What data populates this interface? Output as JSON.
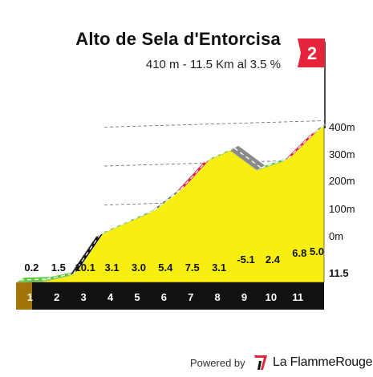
{
  "title": "Alto de Sela d'Entorcisa",
  "subtitle": "410 m - 11.5 Km al 3.5 %",
  "category_flag": "2",
  "footer": {
    "powered_by": "Powered by",
    "brand": "La FlammeRouge"
  },
  "colors": {
    "fill": "#f7ef10",
    "base": "#111111",
    "base_side": "#a3740a",
    "grade_colors": {
      "easy": "#5dc83c",
      "hard": "#111111",
      "medium": "#1d5b8a",
      "steep": "#e5243b",
      "flat": "#8a8a8a"
    },
    "flag": "#e5243b"
  },
  "chart_data": {
    "type": "area",
    "title": "Alto de Sela d'Entorcisa",
    "subtitle": "410 m - 11.5 Km al 3.5 %",
    "x_unit": "km",
    "y_unit": "m",
    "xlim": [
      0,
      11.5
    ],
    "ylim": [
      0,
      400
    ],
    "y_ticks": [
      "0m",
      "100m",
      "200m",
      "300m",
      "400m"
    ],
    "km_markers": [
      "1",
      "2",
      "3",
      "4",
      "5",
      "6",
      "7",
      "8",
      "9",
      "10",
      "11"
    ],
    "end_label": "11.5",
    "segments": [
      {
        "km": "1",
        "gradient": "0.2",
        "color_key": "easy"
      },
      {
        "km": "2",
        "gradient": "1.5",
        "color_key": "easy"
      },
      {
        "km": "3",
        "gradient": "10.1",
        "color_key": "hard"
      },
      {
        "km": "4",
        "gradient": "3.1",
        "color_key": "easy"
      },
      {
        "km": "5",
        "gradient": "3.0",
        "color_key": "easy"
      },
      {
        "km": "6",
        "gradient": "5.4",
        "color_key": "medium"
      },
      {
        "km": "7",
        "gradient": "7.5",
        "color_key": "steep"
      },
      {
        "km": "8",
        "gradient": "3.1",
        "color_key": "easy"
      },
      {
        "km": "9",
        "gradient": "-5.1",
        "color_key": "flat"
      },
      {
        "km": "10",
        "gradient": "2.4",
        "color_key": "easy"
      },
      {
        "km": "11",
        "gradient": "6.8",
        "color_key": "steep"
      },
      {
        "km": "11.5",
        "gradient": "5.0",
        "color_key": "medium"
      }
    ],
    "elevation_km": [
      0,
      1,
      2,
      3,
      4,
      5,
      6,
      7,
      8,
      9,
      10,
      11,
      11.5
    ],
    "elevation_m": [
      0,
      2,
      17,
      118,
      149,
      179,
      233,
      308,
      339,
      288,
      312,
      380,
      405
    ]
  }
}
